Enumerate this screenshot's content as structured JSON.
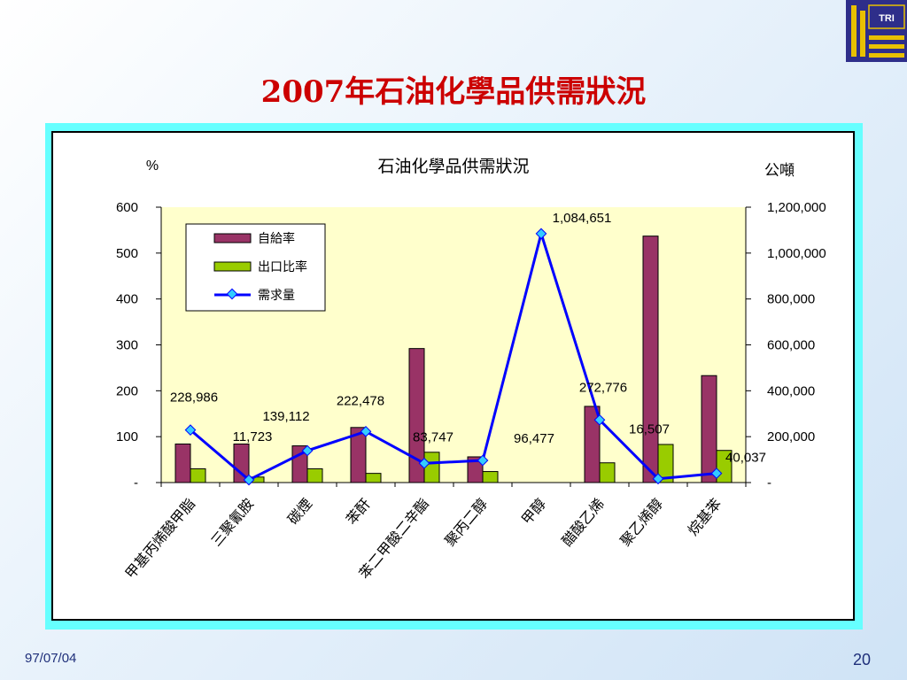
{
  "slide": {
    "title": "2007年石油化學品供需狀況",
    "footer_date": "97/07/04",
    "page_number": "20",
    "logo_text": "TRI"
  },
  "chart_data": {
    "type": "bar",
    "title": "石油化學品供需狀況",
    "y_left_unit": "%",
    "y_right_unit": "公噸",
    "categories": [
      "甲基丙烯酸甲脂",
      "三聚氰胺",
      "碳煙",
      "苯酐",
      "苯二甲酸二辛酯",
      "聚丙二醇",
      "甲醇",
      "醋酸乙烯",
      "聚乙烯醇",
      "烷基苯"
    ],
    "ylim_left": [
      0,
      600
    ],
    "ylim_right": [
      0,
      1200000
    ],
    "yticks_left": [
      "-",
      "100",
      "200",
      "300",
      "400",
      "500",
      "600"
    ],
    "yticks_right": [
      "-",
      "200,000",
      "400,000",
      "600,000",
      "800,000",
      "1,000,000",
      "1,200,000"
    ],
    "series": [
      {
        "name": "自給率",
        "axis": "left",
        "kind": "bar",
        "color": "#993366",
        "values": [
          84,
          84,
          80,
          120,
          292,
          56,
          0,
          166,
          537,
          233
        ]
      },
      {
        "name": "出口比率",
        "axis": "left",
        "kind": "bar",
        "color": "#99cc00",
        "values": [
          30,
          12,
          30,
          20,
          66,
          24,
          0,
          43,
          83,
          70
        ]
      },
      {
        "name": "需求量",
        "axis": "right",
        "kind": "line",
        "color": "#0000ff",
        "values": [
          228986,
          11723,
          139112,
          222478,
          83747,
          96477,
          1084651,
          272776,
          16507,
          40037
        ],
        "labels": [
          "228,986",
          "11,723",
          "139,112",
          "222,478",
          "83,747",
          "96,477",
          "1,084,651",
          "272,776",
          "16,507",
          "40,037"
        ]
      }
    ],
    "legend_position": "top-left",
    "grid": false,
    "plot_background": "#ffffcc"
  }
}
